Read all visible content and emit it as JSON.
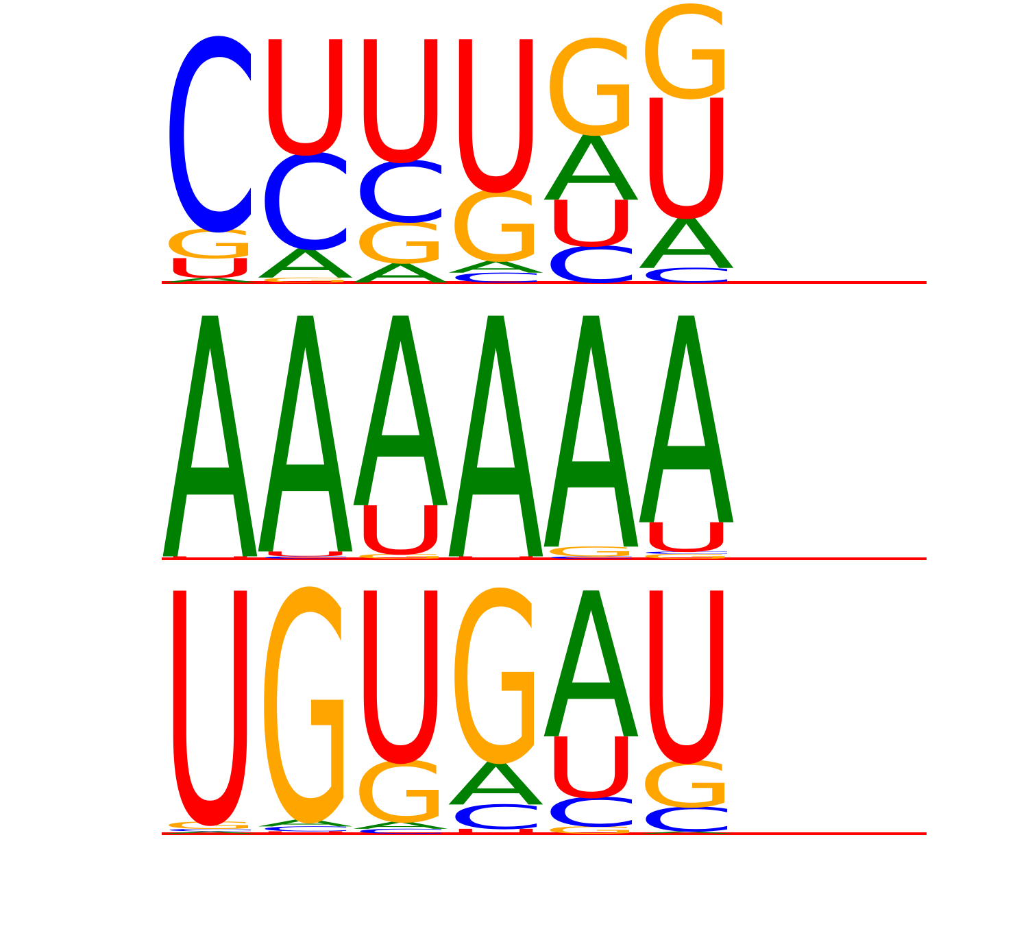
{
  "colors": {
    "A": "#008000",
    "C": "#0000ff",
    "G": "#ffa500",
    "U": "#ff0000",
    "baseline": "#ff0000"
  },
  "logos": [
    {
      "positions": [
        [
          {
            "letter": "A",
            "value": 0.02
          },
          {
            "letter": "U",
            "value": 0.08
          },
          {
            "letter": "G",
            "value": 0.12
          },
          {
            "letter": "C",
            "value": 0.78
          }
        ],
        [
          {
            "letter": "G",
            "value": 0.02
          },
          {
            "letter": "A",
            "value": 0.12
          },
          {
            "letter": "C",
            "value": 0.39
          },
          {
            "letter": "U",
            "value": 0.47
          }
        ],
        [
          {
            "letter": "A",
            "value": 0.08
          },
          {
            "letter": "G",
            "value": 0.17
          },
          {
            "letter": "C",
            "value": 0.25
          },
          {
            "letter": "U",
            "value": 0.5
          }
        ],
        [
          {
            "letter": "C",
            "value": 0.04
          },
          {
            "letter": "A",
            "value": 0.05
          },
          {
            "letter": "G",
            "value": 0.29
          },
          {
            "letter": "U",
            "value": 0.62
          }
        ],
        [
          {
            "letter": "C",
            "value": 0.15
          },
          {
            "letter": "U",
            "value": 0.19
          },
          {
            "letter": "A",
            "value": 0.27
          },
          {
            "letter": "G",
            "value": 0.39
          }
        ],
        [
          {
            "letter": "C",
            "value": 0.06
          },
          {
            "letter": "A",
            "value": 0.21
          },
          {
            "letter": "U",
            "value": 0.49
          },
          {
            "letter": "G",
            "value": 0.38
          }
        ]
      ]
    },
    {
      "positions": [
        [
          {
            "letter": "U",
            "value": 0.01
          },
          {
            "letter": "A",
            "value": 0.99
          }
        ],
        [
          {
            "letter": "C",
            "value": 0.01
          },
          {
            "letter": "U",
            "value": 0.02
          },
          {
            "letter": "A",
            "value": 0.97
          }
        ],
        [
          {
            "letter": "G",
            "value": 0.02
          },
          {
            "letter": "U",
            "value": 0.2
          },
          {
            "letter": "A",
            "value": 0.78
          }
        ],
        [
          {
            "letter": "U",
            "value": 0.01
          },
          {
            "letter": "A",
            "value": 0.99
          }
        ],
        [
          {
            "letter": "C",
            "value": 0.01
          },
          {
            "letter": "G",
            "value": 0.04
          },
          {
            "letter": "A",
            "value": 0.95
          }
        ],
        [
          {
            "letter": "G",
            "value": 0.02
          },
          {
            "letter": "C",
            "value": 0.01
          },
          {
            "letter": "U",
            "value": 0.12
          },
          {
            "letter": "A",
            "value": 0.85
          }
        ]
      ]
    },
    {
      "positions": [
        [
          {
            "letter": "A",
            "value": 0.01
          },
          {
            "letter": "C",
            "value": 0.01
          },
          {
            "letter": "G",
            "value": 0.03
          },
          {
            "letter": "U",
            "value": 0.95
          }
        ],
        [
          {
            "letter": "U",
            "value": 0.01
          },
          {
            "letter": "C",
            "value": 0.02
          },
          {
            "letter": "A",
            "value": 0.03
          },
          {
            "letter": "G",
            "value": 0.94
          }
        ],
        [
          {
            "letter": "C",
            "value": 0.02
          },
          {
            "letter": "A",
            "value": 0.03
          },
          {
            "letter": "G",
            "value": 0.25
          },
          {
            "letter": "U",
            "value": 0.7
          }
        ],
        [
          {
            "letter": "U",
            "value": 0.02
          },
          {
            "letter": "C",
            "value": 0.1
          },
          {
            "letter": "A",
            "value": 0.18
          },
          {
            "letter": "G",
            "value": 0.7
          }
        ],
        [
          {
            "letter": "G",
            "value": 0.03
          },
          {
            "letter": "C",
            "value": 0.12
          },
          {
            "letter": "U",
            "value": 0.25
          },
          {
            "letter": "A",
            "value": 0.6
          }
        ],
        [
          {
            "letter": "A",
            "value": 0.01
          },
          {
            "letter": "C",
            "value": 0.1
          },
          {
            "letter": "G",
            "value": 0.19
          },
          {
            "letter": "U",
            "value": 0.7
          }
        ]
      ]
    }
  ]
}
